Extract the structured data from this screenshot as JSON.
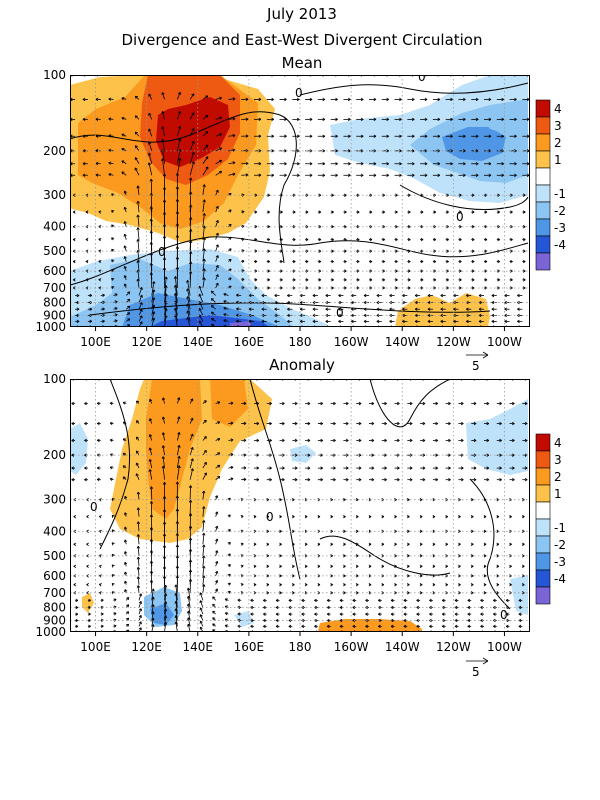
{
  "header": {
    "title": "July 2013",
    "subtitle": "Divergence and East-West Divergent Circulation"
  },
  "colors": {
    "pos4": "#c20b00",
    "pos3": "#ef5a12",
    "pos2": "#fb9a1e",
    "pos1": "#fdc24a",
    "neg1": "#bfe2fb",
    "neg2": "#8cc4f2",
    "neg3": "#4f96e6",
    "neg4": "#2655d6",
    "neg5": "#7b64d6"
  },
  "chart_data": [
    {
      "type": "heatmap",
      "title": "Mean",
      "panel": "mean",
      "x_ticks": [
        "100E",
        "120E",
        "140E",
        "160E",
        "180",
        "160W",
        "140W",
        "120W",
        "100W"
      ],
      "x_range_deg_east": [
        90,
        270
      ],
      "y_ticks": [
        "100",
        "200",
        "300",
        "400",
        "500",
        "600",
        "700",
        "800",
        "900",
        "1000"
      ],
      "y_range_hpa": [
        100,
        1000
      ],
      "y_scale": "log pressure",
      "colorbar": {
        "labels": [
          "4",
          "3",
          "2",
          "1",
          "-1",
          "-2",
          "-3",
          "-4"
        ]
      },
      "contour_labels": [
        "0",
        "0",
        "0",
        "0",
        "0"
      ],
      "reference_vector": "5",
      "grid": true
    },
    {
      "type": "heatmap",
      "title": "Anomaly",
      "panel": "anomaly",
      "x_ticks": [
        "100E",
        "120E",
        "140E",
        "160E",
        "180",
        "160W",
        "140W",
        "120W",
        "100W"
      ],
      "x_range_deg_east": [
        90,
        270
      ],
      "y_ticks": [
        "100",
        "200",
        "300",
        "400",
        "500",
        "600",
        "700",
        "800",
        "900",
        "1000"
      ],
      "y_range_hpa": [
        100,
        1000
      ],
      "y_scale": "log pressure",
      "colorbar": {
        "labels": [
          "4",
          "3",
          "2",
          "1",
          "-1",
          "-2",
          "-3",
          "-4"
        ]
      },
      "contour_labels": [
        "0",
        "0",
        "0"
      ],
      "reference_vector": "5",
      "grid": true
    }
  ]
}
